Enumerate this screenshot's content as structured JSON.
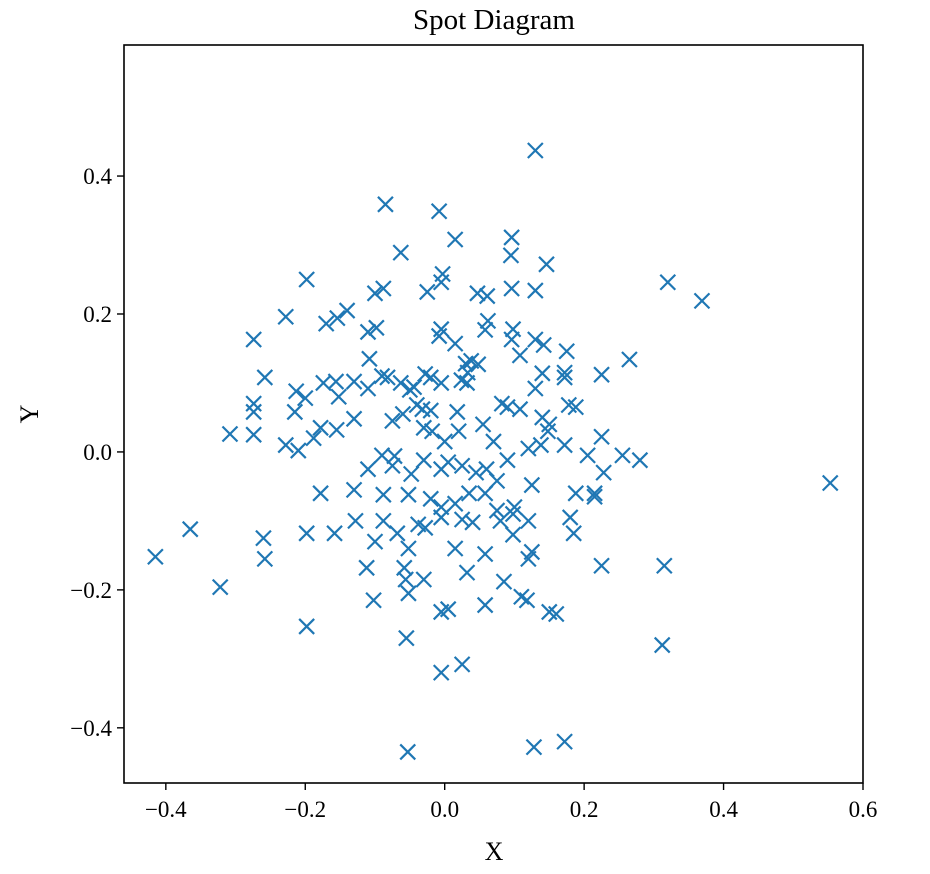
{
  "chart_data": {
    "type": "scatter",
    "title": "Spot Diagram",
    "xlabel": "X",
    "ylabel": "Y",
    "xlim": [
      -0.46,
      0.6
    ],
    "ylim": [
      -0.48,
      0.59
    ],
    "xticks": [
      -0.4,
      -0.2,
      0.0,
      0.2,
      0.4,
      0.6
    ],
    "yticks": [
      -0.4,
      -0.2,
      0.0,
      0.2,
      0.4
    ],
    "xtick_labels": [
      "−0.4",
      "−0.2",
      "0.0",
      "0.2",
      "0.4",
      "0.6"
    ],
    "ytick_labels": [
      "−0.4",
      "−0.2",
      "0.0",
      "0.2",
      "0.4"
    ],
    "grid": false,
    "marker": "x",
    "color": "#1f77b4",
    "points": [
      [
        0.13,
        0.437
      ],
      [
        -0.085,
        0.359
      ],
      [
        -0.008,
        0.349
      ],
      [
        0.015,
        0.308
      ],
      [
        0.096,
        0.311
      ],
      [
        -0.063,
        0.289
      ],
      [
        0.095,
        0.285
      ],
      [
        0.146,
        0.272
      ],
      [
        -0.003,
        0.258
      ],
      [
        -0.005,
        0.246
      ],
      [
        0.32,
        0.246
      ],
      [
        0.369,
        0.219
      ],
      [
        -0.198,
        0.25
      ],
      [
        -0.088,
        0.237
      ],
      [
        -0.1,
        0.23
      ],
      [
        -0.025,
        0.232
      ],
      [
        0.047,
        0.23
      ],
      [
        0.061,
        0.226
      ],
      [
        0.096,
        0.237
      ],
      [
        0.13,
        0.234
      ],
      [
        -0.228,
        0.196
      ],
      [
        -0.17,
        0.186
      ],
      [
        -0.14,
        0.205
      ],
      [
        -0.154,
        0.194
      ],
      [
        -0.11,
        0.174
      ],
      [
        -0.098,
        0.18
      ],
      [
        -0.005,
        0.178
      ],
      [
        -0.008,
        0.168
      ],
      [
        0.062,
        0.19
      ],
      [
        0.058,
        0.177
      ],
      [
        0.098,
        0.178
      ],
      [
        0.096,
        0.163
      ],
      [
        0.13,
        0.163
      ],
      [
        0.142,
        0.155
      ],
      [
        0.175,
        0.146
      ],
      [
        0.265,
        0.134
      ],
      [
        -0.274,
        0.163
      ],
      [
        -0.258,
        0.108
      ],
      [
        -0.108,
        0.135
      ],
      [
        -0.09,
        0.11
      ],
      [
        -0.082,
        0.108
      ],
      [
        -0.063,
        0.1
      ],
      [
        -0.028,
        0.113
      ],
      [
        -0.02,
        0.108
      ],
      [
        0.015,
        0.157
      ],
      [
        0.03,
        0.128
      ],
      [
        0.038,
        0.132
      ],
      [
        0.048,
        0.127
      ],
      [
        0.033,
        0.115
      ],
      [
        0.108,
        0.14
      ],
      [
        0.13,
        0.092
      ],
      [
        0.14,
        0.114
      ],
      [
        0.172,
        0.115
      ],
      [
        0.172,
        0.108
      ],
      [
        0.225,
        0.112
      ],
      [
        -0.213,
        0.088
      ],
      [
        -0.2,
        0.078
      ],
      [
        -0.174,
        0.1
      ],
      [
        -0.156,
        0.102
      ],
      [
        -0.13,
        0.102
      ],
      [
        -0.11,
        0.092
      ],
      [
        -0.05,
        0.09
      ],
      [
        -0.044,
        0.094
      ],
      [
        -0.005,
        0.1
      ],
      [
        0.024,
        0.104
      ],
      [
        0.032,
        0.1
      ],
      [
        -0.274,
        0.07
      ],
      [
        -0.274,
        0.058
      ],
      [
        -0.215,
        0.058
      ],
      [
        -0.152,
        0.08
      ],
      [
        -0.075,
        0.045
      ],
      [
        -0.06,
        0.055
      ],
      [
        -0.04,
        0.068
      ],
      [
        -0.032,
        0.062
      ],
      [
        -0.02,
        0.06
      ],
      [
        0.018,
        0.058
      ],
      [
        0.082,
        0.07
      ],
      [
        0.09,
        0.065
      ],
      [
        0.108,
        0.062
      ],
      [
        0.178,
        0.068
      ],
      [
        0.188,
        0.065
      ],
      [
        0.14,
        0.05
      ],
      [
        0.15,
        0.04
      ],
      [
        -0.308,
        0.026
      ],
      [
        -0.274,
        0.025
      ],
      [
        -0.228,
        0.01
      ],
      [
        -0.21,
        0.002
      ],
      [
        -0.188,
        0.02
      ],
      [
        -0.178,
        0.035
      ],
      [
        -0.155,
        0.032
      ],
      [
        -0.13,
        0.048
      ],
      [
        -0.09,
        -0.005
      ],
      [
        -0.072,
        -0.006
      ],
      [
        -0.03,
        0.035
      ],
      [
        -0.018,
        0.03
      ],
      [
        0.0,
        0.015
      ],
      [
        0.02,
        0.03
      ],
      [
        0.055,
        0.04
      ],
      [
        0.07,
        0.015
      ],
      [
        0.12,
        0.005
      ],
      [
        0.138,
        0.01
      ],
      [
        0.148,
        0.03
      ],
      [
        0.172,
        0.01
      ],
      [
        0.225,
        0.022
      ],
      [
        0.205,
        -0.005
      ],
      [
        0.255,
        -0.005
      ],
      [
        0.28,
        -0.012
      ],
      [
        0.553,
        -0.045
      ],
      [
        -0.11,
        -0.025
      ],
      [
        -0.075,
        -0.02
      ],
      [
        -0.048,
        -0.032
      ],
      [
        -0.03,
        -0.012
      ],
      [
        -0.005,
        -0.025
      ],
      [
        0.005,
        -0.015
      ],
      [
        0.025,
        -0.02
      ],
      [
        0.045,
        -0.03
      ],
      [
        0.06,
        -0.025
      ],
      [
        0.075,
        -0.042
      ],
      [
        0.09,
        -0.012
      ],
      [
        0.125,
        -0.048
      ],
      [
        0.188,
        -0.06
      ],
      [
        0.215,
        -0.06
      ],
      [
        0.228,
        -0.03
      ],
      [
        -0.178,
        -0.06
      ],
      [
        -0.13,
        -0.055
      ],
      [
        -0.088,
        -0.062
      ],
      [
        -0.052,
        -0.062
      ],
      [
        -0.02,
        -0.068
      ],
      [
        -0.005,
        -0.08
      ],
      [
        0.015,
        -0.075
      ],
      [
        0.035,
        -0.06
      ],
      [
        0.058,
        -0.06
      ],
      [
        0.075,
        -0.085
      ],
      [
        0.098,
        -0.09
      ],
      [
        0.1,
        -0.08
      ],
      [
        0.12,
        -0.1
      ],
      [
        0.18,
        -0.095
      ],
      [
        0.215,
        -0.065
      ],
      [
        -0.365,
        -0.112
      ],
      [
        -0.26,
        -0.125
      ],
      [
        -0.198,
        -0.118
      ],
      [
        -0.158,
        -0.118
      ],
      [
        -0.128,
        -0.1
      ],
      [
        -0.1,
        -0.13
      ],
      [
        -0.088,
        -0.1
      ],
      [
        -0.068,
        -0.118
      ],
      [
        -0.052,
        -0.14
      ],
      [
        -0.038,
        -0.105
      ],
      [
        -0.028,
        -0.11
      ],
      [
        -0.005,
        -0.095
      ],
      [
        0.025,
        -0.098
      ],
      [
        0.04,
        -0.102
      ],
      [
        0.08,
        -0.1
      ],
      [
        0.098,
        -0.12
      ],
      [
        0.125,
        -0.145
      ],
      [
        0.185,
        -0.118
      ],
      [
        -0.415,
        -0.152
      ],
      [
        -0.258,
        -0.155
      ],
      [
        -0.112,
        -0.168
      ],
      [
        -0.058,
        -0.168
      ],
      [
        -0.03,
        -0.185
      ],
      [
        0.015,
        -0.14
      ],
      [
        0.058,
        -0.148
      ],
      [
        0.085,
        -0.188
      ],
      [
        0.12,
        -0.155
      ],
      [
        0.225,
        -0.165
      ],
      [
        0.315,
        -0.165
      ],
      [
        -0.322,
        -0.196
      ],
      [
        -0.102,
        -0.215
      ],
      [
        -0.056,
        -0.185
      ],
      [
        -0.052,
        -0.205
      ],
      [
        -0.005,
        -0.232
      ],
      [
        0.005,
        -0.228
      ],
      [
        0.032,
        -0.175
      ],
      [
        0.058,
        -0.222
      ],
      [
        0.11,
        -0.21
      ],
      [
        0.118,
        -0.215
      ],
      [
        0.15,
        -0.232
      ],
      [
        0.16,
        -0.235
      ],
      [
        -0.198,
        -0.253
      ],
      [
        -0.055,
        -0.27
      ],
      [
        0.312,
        -0.28
      ],
      [
        -0.005,
        -0.32
      ],
      [
        0.025,
        -0.308
      ],
      [
        -0.053,
        -0.435
      ],
      [
        0.128,
        -0.428
      ],
      [
        0.172,
        -0.42
      ]
    ]
  }
}
